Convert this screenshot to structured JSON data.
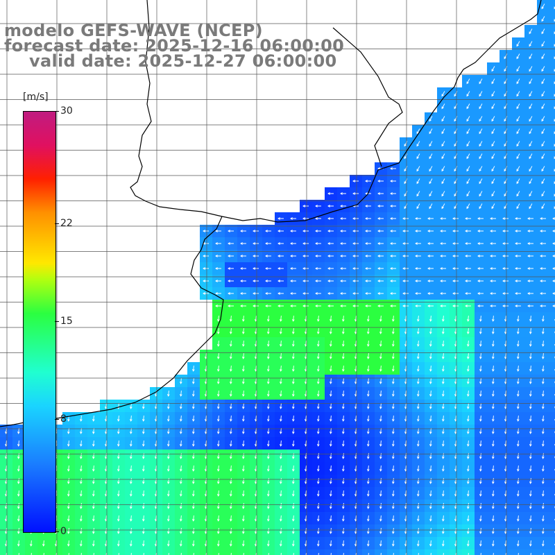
{
  "title": {
    "model": "modelo GEFS-WAVE (NCEP)",
    "forecast": "forecast date: 2025-12-16 06:00:00",
    "valid": "valid date: 2025-12-27 06:00:00"
  },
  "colorbar": {
    "unit": "[m/s]",
    "ticks": [
      {
        "label": "30",
        "value": 30
      },
      {
        "label": "22",
        "value": 22
      },
      {
        "label": "15",
        "value": 15
      },
      {
        "label": "8",
        "value": 8
      },
      {
        "label": "0",
        "value": 0
      }
    ],
    "min": 0,
    "max": 30
  },
  "colors": {
    "land": "#ffffff",
    "grid": "#555555",
    "coast": "#000000",
    "arrow": "#ffffff",
    "title_text": "#7a7a7a"
  },
  "map": {
    "parameter": "wind speed with direction arrows",
    "grid": true,
    "region": "Rio de la Plata / Uruguay / Buenos Aires coast, South Atlantic"
  }
}
